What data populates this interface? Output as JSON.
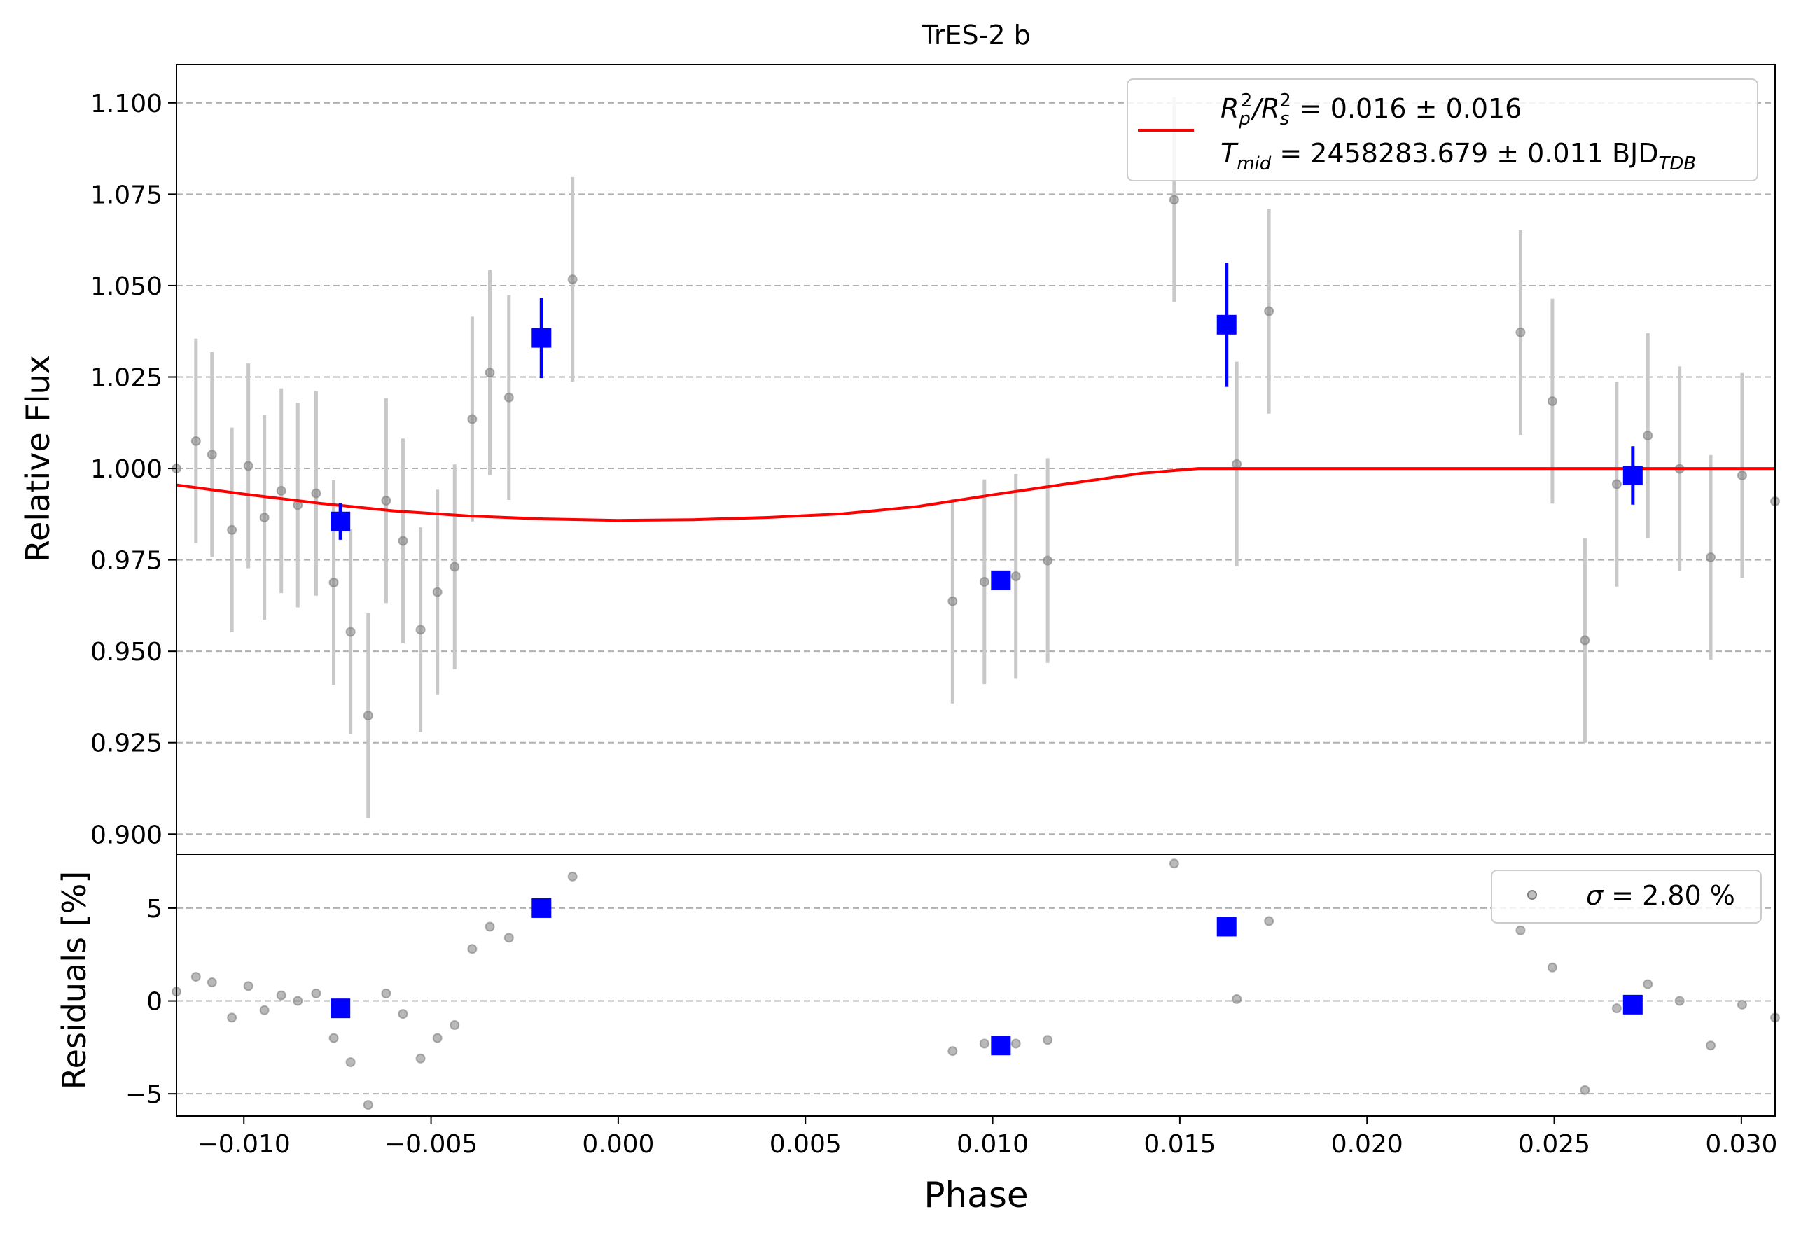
{
  "chart_data": {
    "type": "scatter",
    "title": "TrES-2 b",
    "xlabel": "Phase",
    "xlim": [
      -0.0118,
      0.0309
    ],
    "x_ticks": [
      {
        "value": -0.01,
        "label": "−0.010"
      },
      {
        "value": -0.005,
        "label": "−0.005"
      },
      {
        "value": 0.0,
        "label": "0.000"
      },
      {
        "value": 0.005,
        "label": "0.005"
      },
      {
        "value": 0.01,
        "label": "0.010"
      },
      {
        "value": 0.015,
        "label": "0.015"
      },
      {
        "value": 0.02,
        "label": "0.020"
      },
      {
        "value": 0.025,
        "label": "0.025"
      },
      {
        "value": 0.03,
        "label": "0.030"
      }
    ],
    "top_panel": {
      "ylabel": "Relative Flux",
      "ylim": [
        0.8945,
        1.1105
      ],
      "y_ticks": [
        {
          "value": 0.9,
          "label": "0.900"
        },
        {
          "value": 0.925,
          "label": "0.925"
        },
        {
          "value": 0.95,
          "label": "0.950"
        },
        {
          "value": 0.975,
          "label": "0.975"
        },
        {
          "value": 1.0,
          "label": "1.000"
        },
        {
          "value": 1.025,
          "label": "1.025"
        },
        {
          "value": 1.05,
          "label": "1.050"
        },
        {
          "value": 1.075,
          "label": "1.075"
        },
        {
          "value": 1.1,
          "label": "1.100"
        }
      ],
      "grid": "horizontal dashed",
      "legend": {
        "placement": "upper right",
        "line1_parts": [
          "R",
          "p",
          "2",
          "/R",
          "s",
          "2",
          " = 0.016 ± 0.016"
        ],
        "line2_parts": [
          "T",
          "mid",
          " = 2458283.679 ± 0.011 BJD",
          "TDB"
        ]
      },
      "raw_points": [
        {
          "x": -0.0118,
          "y": 1.0,
          "err": 0.0
        },
        {
          "x": -0.01128,
          "y": 1.0075,
          "err": 0.028
        },
        {
          "x": -0.01085,
          "y": 1.0038,
          "err": 0.028
        },
        {
          "x": -0.01032,
          "y": 0.9832,
          "err": 0.028
        },
        {
          "x": -0.00988,
          "y": 1.0007,
          "err": 0.028
        },
        {
          "x": -0.00945,
          "y": 0.9866,
          "err": 0.028
        },
        {
          "x": -0.009,
          "y": 0.9939,
          "err": 0.028
        },
        {
          "x": -0.00856,
          "y": 0.99,
          "err": 0.028
        },
        {
          "x": -0.00807,
          "y": 0.9932,
          "err": 0.028
        },
        {
          "x": -0.0076,
          "y": 0.9688,
          "err": 0.028
        },
        {
          "x": -0.00715,
          "y": 0.9553,
          "err": 0.028
        },
        {
          "x": -0.00668,
          "y": 0.9324,
          "err": 0.028
        },
        {
          "x": -0.0062,
          "y": 0.9912,
          "err": 0.028
        },
        {
          "x": -0.00575,
          "y": 0.9802,
          "err": 0.028
        },
        {
          "x": -0.00528,
          "y": 0.9559,
          "err": 0.028
        },
        {
          "x": -0.00483,
          "y": 0.9662,
          "err": 0.028
        },
        {
          "x": -0.00437,
          "y": 0.9731,
          "err": 0.028
        },
        {
          "x": -0.0039,
          "y": 1.0135,
          "err": 0.028
        },
        {
          "x": -0.00343,
          "y": 1.0262,
          "err": 0.028
        },
        {
          "x": -0.00292,
          "y": 1.0194,
          "err": 0.028
        },
        {
          "x": -0.00122,
          "y": 1.0517,
          "err": 0.028
        },
        {
          "x": 0.00893,
          "y": 0.9637,
          "err": 0.028
        },
        {
          "x": 0.00978,
          "y": 0.969,
          "err": 0.028
        },
        {
          "x": 0.01062,
          "y": 0.9705,
          "err": 0.028
        },
        {
          "x": 0.01147,
          "y": 0.9748,
          "err": 0.028
        },
        {
          "x": 0.01485,
          "y": 1.0735,
          "err": 0.028
        },
        {
          "x": 0.01652,
          "y": 1.0012,
          "err": 0.028
        },
        {
          "x": 0.01738,
          "y": 1.043,
          "err": 0.028
        },
        {
          "x": 0.0241,
          "y": 1.0372,
          "err": 0.028
        },
        {
          "x": 0.02495,
          "y": 1.0184,
          "err": 0.028
        },
        {
          "x": 0.02582,
          "y": 0.953,
          "err": 0.028
        },
        {
          "x": 0.02667,
          "y": 0.9957,
          "err": 0.028
        },
        {
          "x": 0.0275,
          "y": 1.009,
          "err": 0.028
        },
        {
          "x": 0.02835,
          "y": 0.9999,
          "err": 0.028
        },
        {
          "x": 0.02918,
          "y": 0.9757,
          "err": 0.028
        },
        {
          "x": 0.03002,
          "y": 0.9981,
          "err": 0.028
        },
        {
          "x": 0.0309,
          "y": 0.991,
          "err": 0.0
        }
      ],
      "binned_points": [
        {
          "x": -0.00742,
          "y": 0.9855,
          "err": 0.005
        },
        {
          "x": -0.00205,
          "y": 1.0357,
          "err": 0.011
        },
        {
          "x": 0.01022,
          "y": 0.9694,
          "err": 0.0
        },
        {
          "x": 0.01625,
          "y": 1.0393,
          "err": 0.017
        },
        {
          "x": 0.0271,
          "y": 0.9981,
          "err": 0.008
        }
      ],
      "model": {
        "name": "transit model",
        "color": "#ff0000",
        "x": [
          -0.0118,
          -0.01,
          -0.008,
          -0.006,
          -0.004,
          -0.002,
          0.0,
          0.002,
          0.004,
          0.006,
          0.008,
          0.01,
          0.012,
          0.014,
          0.0155,
          0.0309
        ],
        "y": [
          0.9955,
          0.993,
          0.9905,
          0.9884,
          0.987,
          0.9862,
          0.9858,
          0.986,
          0.9866,
          0.9876,
          0.9896,
          0.9928,
          0.9958,
          0.9987,
          1.0,
          1.0
        ]
      }
    },
    "bottom_panel": {
      "ylabel": "Residuals [%]",
      "ylim": [
        -6.2,
        7.9
      ],
      "y_ticks": [
        {
          "value": -5,
          "label": "−5"
        },
        {
          "value": 0,
          "label": "0"
        },
        {
          "value": 5,
          "label": "5"
        }
      ],
      "grid": "horizontal dashed",
      "legend": {
        "placement": "upper right",
        "parts": [
          "σ",
          " = 2.80 %"
        ]
      },
      "raw_points": [
        {
          "x": -0.0118,
          "y": 0.5
        },
        {
          "x": -0.01128,
          "y": 1.3
        },
        {
          "x": -0.01085,
          "y": 1.0
        },
        {
          "x": -0.01032,
          "y": -0.9
        },
        {
          "x": -0.00988,
          "y": 0.8
        },
        {
          "x": -0.00945,
          "y": -0.5
        },
        {
          "x": -0.009,
          "y": 0.3
        },
        {
          "x": -0.00856,
          "y": 0.0
        },
        {
          "x": -0.00807,
          "y": 0.4
        },
        {
          "x": -0.0076,
          "y": -2.0
        },
        {
          "x": -0.00715,
          "y": -3.3
        },
        {
          "x": -0.00668,
          "y": -5.6
        },
        {
          "x": -0.0062,
          "y": 0.4
        },
        {
          "x": -0.00575,
          "y": -0.7
        },
        {
          "x": -0.00528,
          "y": -3.1
        },
        {
          "x": -0.00483,
          "y": -2.0
        },
        {
          "x": -0.00437,
          "y": -1.3
        },
        {
          "x": -0.0039,
          "y": 2.8
        },
        {
          "x": -0.00343,
          "y": 4.0
        },
        {
          "x": -0.00292,
          "y": 3.4
        },
        {
          "x": -0.00122,
          "y": 6.7
        },
        {
          "x": 0.00893,
          "y": -2.7
        },
        {
          "x": 0.00978,
          "y": -2.3
        },
        {
          "x": 0.01062,
          "y": -2.3
        },
        {
          "x": 0.01147,
          "y": -2.1
        },
        {
          "x": 0.01485,
          "y": 7.4
        },
        {
          "x": 0.01652,
          "y": 0.1
        },
        {
          "x": 0.01738,
          "y": 4.3
        },
        {
          "x": 0.0241,
          "y": 3.8
        },
        {
          "x": 0.02495,
          "y": 1.8
        },
        {
          "x": 0.02582,
          "y": -4.8
        },
        {
          "x": 0.02667,
          "y": -0.4
        },
        {
          "x": 0.0275,
          "y": 0.9
        },
        {
          "x": 0.02835,
          "y": 0.0
        },
        {
          "x": 0.02918,
          "y": -2.4
        },
        {
          "x": 0.03002,
          "y": -0.2
        },
        {
          "x": 0.0309,
          "y": -0.9
        }
      ],
      "binned_points": [
        {
          "x": -0.00742,
          "y": -0.4
        },
        {
          "x": -0.00205,
          "y": 5.0
        },
        {
          "x": 0.01022,
          "y": -2.4
        },
        {
          "x": 0.01625,
          "y": 4.0
        },
        {
          "x": 0.0271,
          "y": -0.2
        }
      ]
    },
    "colors": {
      "raw_points": "#808080",
      "raw_errorbars": "#c8c8c8",
      "binned": "#0000ff",
      "model": "#ff0000",
      "grid": "#b0b0b0"
    }
  }
}
